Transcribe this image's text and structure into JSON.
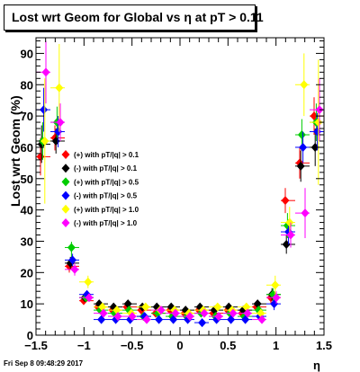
{
  "footer": {
    "timestamp": "Fri Sep  8 09:48:29 2017"
  },
  "chart_data": {
    "type": "scatter",
    "title": "Lost wrt Geom for Global vs  η at pT > 0.11",
    "xlabel": "η",
    "ylabel": "Lost wrt Geom (%)",
    "xlim": [
      -1.5,
      1.5
    ],
    "ylim": [
      0,
      95
    ],
    "x_ticks": [
      -1.5,
      -1.0,
      -0.5,
      0,
      0.5,
      1.0,
      1.5
    ],
    "x_tick_labels": [
      "−1.5",
      "−1",
      "−0.5",
      "0",
      "0.5",
      "1",
      "1.5"
    ],
    "y_ticks": [
      0,
      10,
      20,
      30,
      40,
      50,
      60,
      70,
      80,
      90
    ],
    "y_tick_labels": [
      "0",
      "10",
      "20",
      "30",
      "40",
      "50",
      "60",
      "70",
      "80",
      "90"
    ],
    "grid": false,
    "legend_position": "left-middle",
    "series": [
      {
        "name": "(+) with pT/|q| > 0.1",
        "color": "#ff0000",
        "x": [
          -1.425,
          -1.275,
          -1.125,
          -0.975,
          -0.825,
          -0.675,
          -0.525,
          -0.375,
          -0.225,
          -0.075,
          0.075,
          0.225,
          0.375,
          0.525,
          0.675,
          0.825,
          0.975,
          1.125,
          1.275,
          1.425
        ],
        "y": [
          57,
          63,
          22,
          11,
          9,
          8,
          9,
          8,
          7,
          8,
          7,
          8,
          7,
          8,
          7,
          9,
          12,
          43,
          55,
          70
        ],
        "err": [
          6,
          4,
          2,
          1,
          1,
          1,
          1,
          1,
          1,
          1,
          1,
          1,
          1,
          1,
          1,
          1,
          2,
          4,
          5,
          6
        ]
      },
      {
        "name": "(-) with pT/|q| > 0.1",
        "color": "#000000",
        "x": [
          -1.425,
          -1.275,
          -1.125,
          -0.975,
          -0.825,
          -0.675,
          -0.525,
          -0.375,
          -0.225,
          -0.075,
          0.075,
          0.225,
          0.375,
          0.525,
          0.675,
          0.825,
          0.975,
          1.125,
          1.275,
          1.425
        ],
        "y": [
          61,
          62,
          23,
          12,
          10,
          9,
          10,
          9,
          9,
          9,
          8,
          9,
          8,
          9,
          8,
          10,
          13,
          29,
          54,
          60
        ],
        "err": [
          6,
          4,
          2,
          1,
          1,
          1,
          1,
          1,
          1,
          1,
          1,
          1,
          1,
          1,
          1,
          1,
          2,
          3,
          5,
          6
        ]
      },
      {
        "name": "(+) with pT/|q| > 0.5",
        "color": "#00cc00",
        "x": [
          -1.425,
          -1.275,
          -1.125,
          -0.975,
          -0.825,
          -0.675,
          -0.525,
          -0.375,
          -0.225,
          -0.075,
          0.075,
          0.225,
          0.375,
          0.525,
          0.675,
          0.825,
          0.975,
          1.125,
          1.275,
          1.425
        ],
        "y": [
          62,
          68,
          28,
          12,
          8,
          7,
          8,
          6,
          7,
          6,
          6,
          7,
          6,
          7,
          6,
          8,
          13,
          35,
          64,
          68
        ],
        "err": [
          6,
          5,
          3,
          1,
          1,
          1,
          1,
          1,
          1,
          1,
          1,
          1,
          1,
          1,
          1,
          1,
          2,
          4,
          5,
          6
        ]
      },
      {
        "name": "(-) with pT/|q| > 0.5",
        "color": "#0000ff",
        "x": [
          -1.425,
          -1.275,
          -1.125,
          -0.975,
          -0.825,
          -0.675,
          -0.525,
          -0.375,
          -0.225,
          -0.075,
          0.075,
          0.225,
          0.375,
          0.525,
          0.675,
          0.825,
          0.975,
          1.125,
          1.275,
          1.425
        ],
        "y": [
          72,
          65,
          24,
          13,
          5,
          5,
          5,
          6,
          5,
          5,
          5,
          4,
          5,
          5,
          5,
          6,
          10,
          33,
          60,
          65
        ],
        "err": [
          7,
          5,
          2,
          1,
          1,
          1,
          1,
          1,
          1,
          1,
          1,
          1,
          1,
          1,
          1,
          1,
          2,
          4,
          5,
          6
        ]
      },
      {
        "name": "(+) with pT/|q| > 1.0",
        "color": "#ffff00",
        "x": [
          -1.425,
          -1.275,
          -1.125,
          -0.975,
          -0.825,
          -0.675,
          -0.525,
          -0.375,
          -0.225,
          -0.075,
          0.075,
          0.225,
          0.375,
          0.525,
          0.675,
          0.825,
          0.975,
          1.125,
          1.275,
          1.425
        ],
        "y": [
          62,
          79,
          36,
          17,
          9,
          8,
          7,
          9,
          8,
          8,
          7,
          8,
          9,
          8,
          9,
          7,
          16,
          36,
          80,
          68
        ],
        "err": [
          20,
          14,
          5,
          2,
          1,
          1,
          1,
          1,
          1,
          1,
          1,
          1,
          1,
          1,
          1,
          1,
          3,
          5,
          10,
          20
        ]
      },
      {
        "name": "(-) with pT/|q| > 1.0",
        "color": "#ff00ff",
        "x": [
          -1.425,
          -1.275,
          -1.125,
          -0.975,
          -0.825,
          -0.675,
          -0.525,
          -0.375,
          -0.225,
          -0.075,
          0.075,
          0.225,
          0.375,
          0.525,
          0.675,
          0.825,
          0.975,
          1.125,
          1.275,
          1.425
        ],
        "y": [
          84,
          68,
          21,
          12,
          7,
          6,
          6,
          5,
          8,
          7,
          6,
          7,
          6,
          7,
          7,
          5,
          12,
          32,
          39,
          72
        ],
        "err": [
          10,
          6,
          2,
          1,
          1,
          1,
          1,
          1,
          1,
          1,
          1,
          1,
          1,
          1,
          1,
          1,
          2,
          4,
          8,
          10
        ]
      }
    ]
  }
}
